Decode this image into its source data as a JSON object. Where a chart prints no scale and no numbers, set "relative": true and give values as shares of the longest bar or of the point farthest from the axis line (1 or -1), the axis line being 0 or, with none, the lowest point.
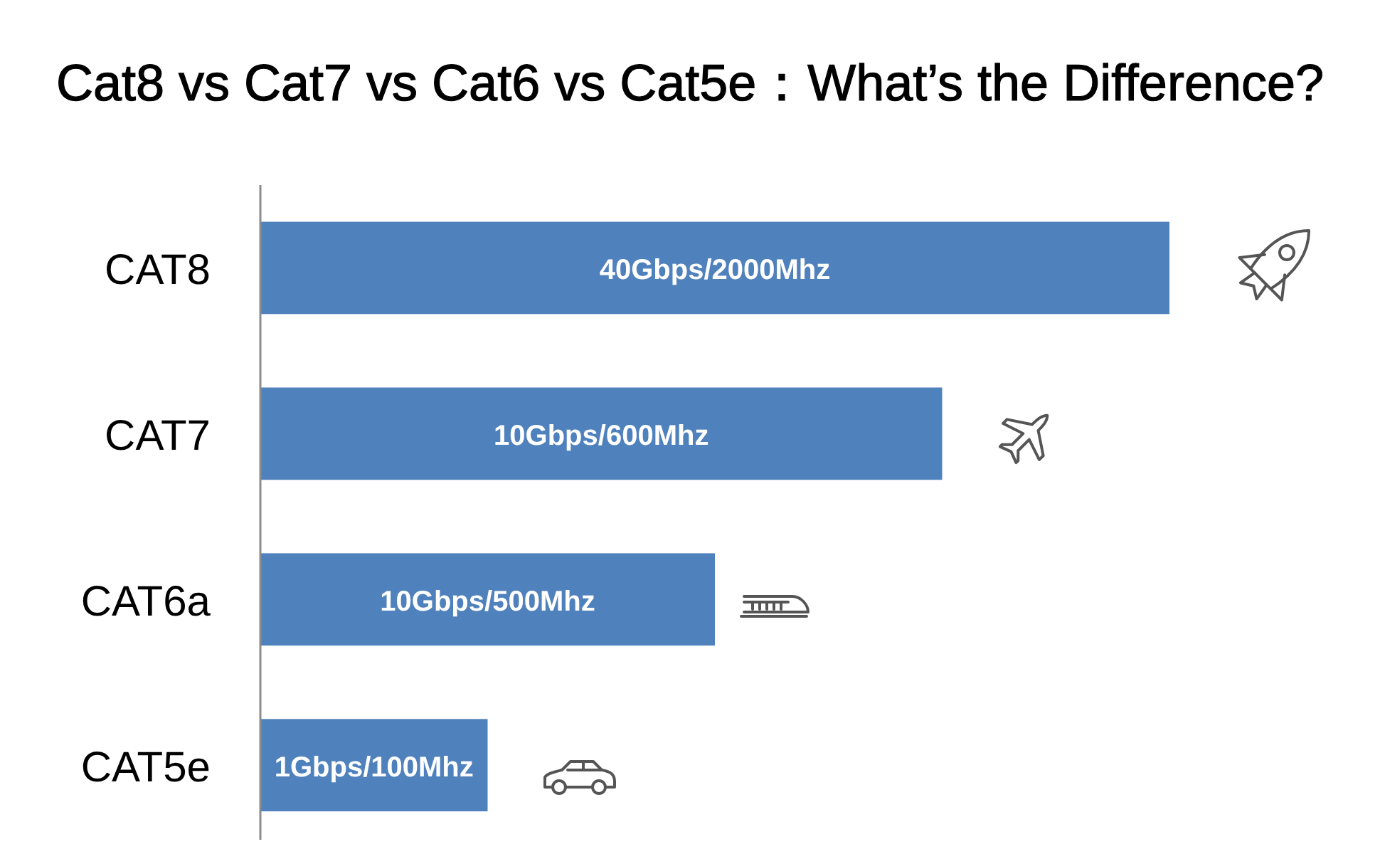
{
  "chart_data": {
    "type": "bar",
    "orientation": "horizontal",
    "relative": true,
    "title": "Cat8 vs Cat7 vs Cat6 vs Cat5e：What’s the Difference?",
    "categories": [
      "CAT8",
      "CAT7",
      "CAT6a",
      "CAT5e"
    ],
    "values": [
      1,
      0.75,
      0.5,
      0.25
    ],
    "annotations": [
      "40Gbps/2000Mhz",
      "10Gbps/600Mhz",
      "10Gbps/500Mhz",
      "1Gbps/100Mhz"
    ],
    "color": "#4f81bd"
  }
}
